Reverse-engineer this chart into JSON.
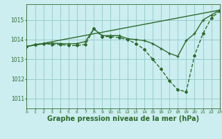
{
  "background_color": "#cceef0",
  "grid_color": "#99cccc",
  "line_color": "#2d6a2d",
  "xlabel": "Graphe pression niveau de la mer (hPa)",
  "xlabel_fontsize": 7,
  "ylim": [
    1010.5,
    1015.8
  ],
  "xlim": [
    0,
    23
  ],
  "yticks": [
    1011,
    1012,
    1013,
    1014,
    1015
  ],
  "xtick_labels": [
    "0",
    "1",
    "2",
    "3",
    "4",
    "5",
    "6",
    "7",
    "8",
    "9",
    "10",
    "11",
    "12",
    "13",
    "14",
    "15",
    "16",
    "17",
    "18",
    "19",
    "20",
    "21",
    "22",
    "23"
  ],
  "series_dashed": {
    "x": [
      0,
      1,
      2,
      3,
      4,
      5,
      6,
      7,
      8,
      9,
      10,
      11,
      12,
      13,
      14,
      15,
      16,
      17,
      18,
      19,
      20,
      21,
      22,
      23
    ],
    "y": [
      1013.65,
      1013.75,
      1013.8,
      1013.75,
      1013.75,
      1013.7,
      1013.7,
      1013.75,
      1014.55,
      1014.15,
      1014.15,
      1014.1,
      1014.0,
      1013.8,
      1013.5,
      1013.0,
      1012.5,
      1011.9,
      1011.45,
      1011.35,
      1013.2,
      1014.3,
      1015.1,
      1015.45
    ],
    "linestyle": "--",
    "linewidth": 1.0,
    "marker": "D",
    "markersize": 2.0
  },
  "series_solid_markers": {
    "x": [
      0,
      1,
      2,
      3,
      4,
      5,
      6,
      7,
      8,
      9,
      10,
      11,
      12,
      13,
      14,
      15,
      16,
      17,
      18,
      19,
      20,
      21,
      22,
      23
    ],
    "y": [
      1013.65,
      1013.72,
      1013.78,
      1013.82,
      1013.8,
      1013.78,
      1013.8,
      1013.9,
      1014.55,
      1014.2,
      1014.2,
      1014.2,
      1014.05,
      1014.0,
      1013.95,
      1013.8,
      1013.55,
      1013.3,
      1013.15,
      1013.95,
      1014.3,
      1015.0,
      1015.25,
      1015.5
    ],
    "linestyle": "-",
    "linewidth": 1.0,
    "marker": "+",
    "markersize": 3.5
  },
  "series_plain": {
    "x": [
      0,
      23
    ],
    "y": [
      1013.65,
      1015.5
    ],
    "linestyle": "-",
    "linewidth": 1.0
  }
}
